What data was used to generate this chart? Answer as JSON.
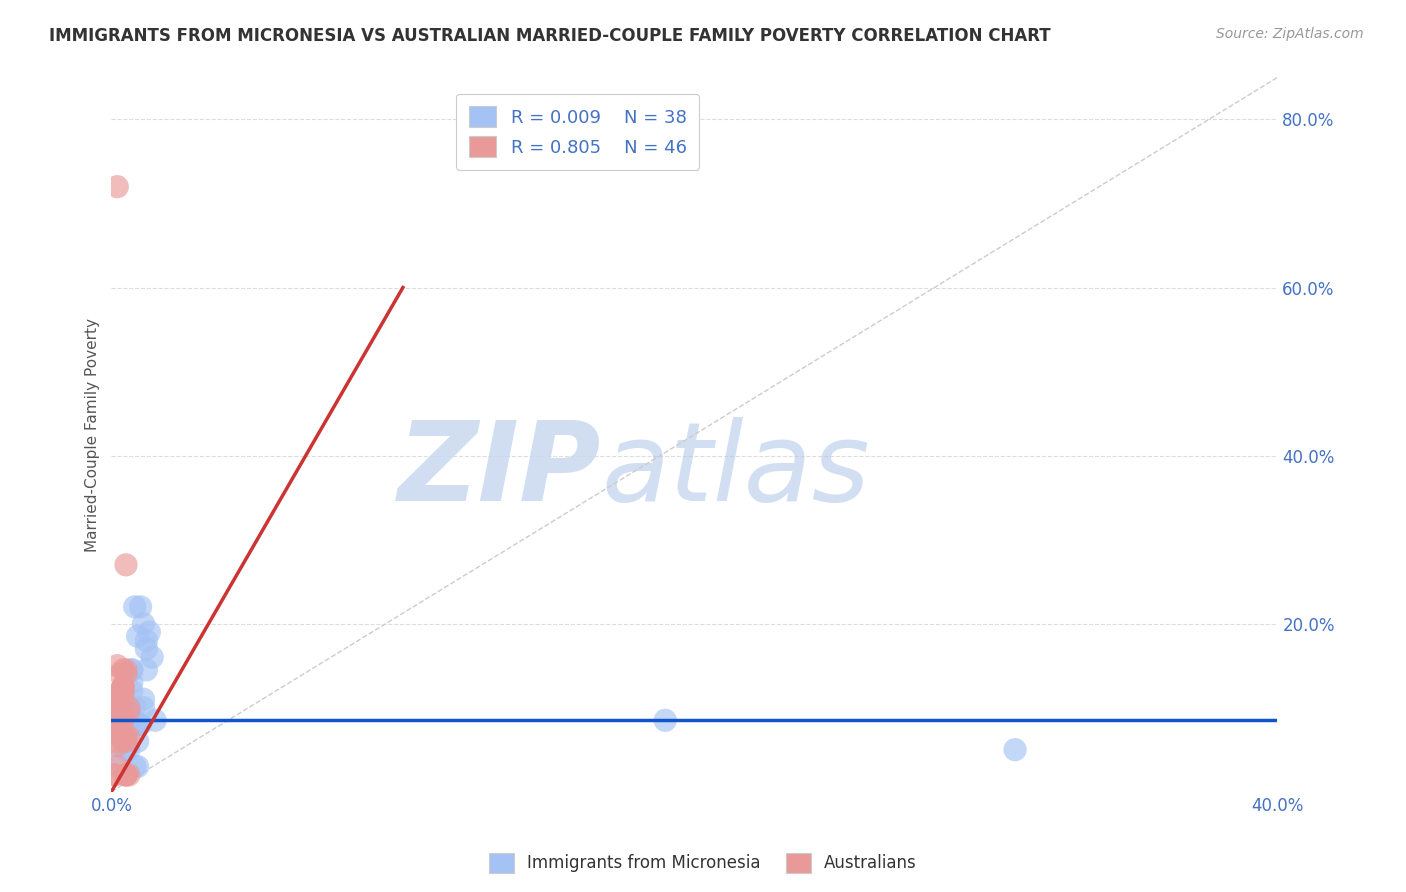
{
  "title": "IMMIGRANTS FROM MICRONESIA VS AUSTRALIAN MARRIED-COUPLE FAMILY POVERTY CORRELATION CHART",
  "source": "Source: ZipAtlas.com",
  "ylabel": "Married-Couple Family Poverty",
  "xlim": [
    0.0,
    0.4
  ],
  "ylim": [
    0.0,
    0.85
  ],
  "blue_color": "#a4c2f4",
  "pink_color": "#ea9999",
  "blue_line_color": "#1155cc",
  "pink_line_color": "#cc3333",
  "diag_color": "#cccccc",
  "grid_color": "#dddddd",
  "R_blue": 0.009,
  "N_blue": 38,
  "R_pink": 0.805,
  "N_pink": 46,
  "legend_label_blue": "Immigrants from Micronesia",
  "legend_label_pink": "Australians",
  "watermark_zip": "ZIP",
  "watermark_atlas": "atlas",
  "background_color": "#ffffff",
  "blue_scatter_x": [
    0.005,
    0.01,
    0.008,
    0.003,
    0.012,
    0.006,
    0.007,
    0.009,
    0.004,
    0.011,
    0.006,
    0.009,
    0.011,
    0.013,
    0.008,
    0.004,
    0.014,
    0.005,
    0.009,
    0.007,
    0.002,
    0.01,
    0.005,
    0.003,
    0.015,
    0.007,
    0.012,
    0.009,
    0.006,
    0.011,
    0.007,
    0.003,
    0.008,
    0.19,
    0.009,
    0.005,
    0.31,
    0.012
  ],
  "blue_scatter_y": [
    0.085,
    0.22,
    0.22,
    0.04,
    0.18,
    0.1,
    0.145,
    0.185,
    0.085,
    0.2,
    0.05,
    0.08,
    0.1,
    0.19,
    0.1,
    0.12,
    0.16,
    0.1,
    0.08,
    0.13,
    0.085,
    0.08,
    0.085,
    0.11,
    0.085,
    0.12,
    0.17,
    0.06,
    0.085,
    0.11,
    0.145,
    0.085,
    0.03,
    0.085,
    0.03,
    0.05,
    0.05,
    0.145
  ],
  "pink_scatter_x": [
    0.001,
    0.002,
    0.003,
    0.004,
    0.005,
    0.002,
    0.003,
    0.001,
    0.004,
    0.005,
    0.006,
    0.003,
    0.004,
    0.002,
    0.005,
    0.001,
    0.003,
    0.004,
    0.002,
    0.003,
    0.005,
    0.004,
    0.006,
    0.003,
    0.002,
    0.004,
    0.005,
    0.003,
    0.004,
    0.002,
    0.001,
    0.003,
    0.005,
    0.004,
    0.006,
    0.002,
    0.003,
    0.004,
    0.005,
    0.002,
    0.003,
    0.004,
    0.005,
    0.006,
    0.003,
    0.004
  ],
  "pink_scatter_y": [
    0.02,
    0.03,
    0.07,
    0.06,
    0.14,
    0.15,
    0.12,
    0.07,
    0.09,
    0.02,
    0.1,
    0.09,
    0.145,
    0.115,
    0.02,
    0.06,
    0.07,
    0.09,
    0.1,
    0.14,
    0.27,
    0.12,
    0.02,
    0.095,
    0.08,
    0.125,
    0.06,
    0.085,
    0.07,
    0.105,
    0.02,
    0.115,
    0.145,
    0.125,
    0.095,
    0.72,
    0.075,
    0.085,
    0.065,
    0.055,
    0.105,
    0.125,
    0.02,
    0.065,
    0.095,
    0.115
  ],
  "blue_line_x": [
    0.0,
    0.4
  ],
  "blue_line_y": [
    0.085,
    0.085
  ],
  "pink_line_x": [
    0.0,
    0.1
  ],
  "pink_line_y": [
    0.0,
    0.6
  ],
  "diag_line_x": [
    0.0,
    0.4
  ],
  "diag_line_y": [
    0.0,
    0.85
  ]
}
